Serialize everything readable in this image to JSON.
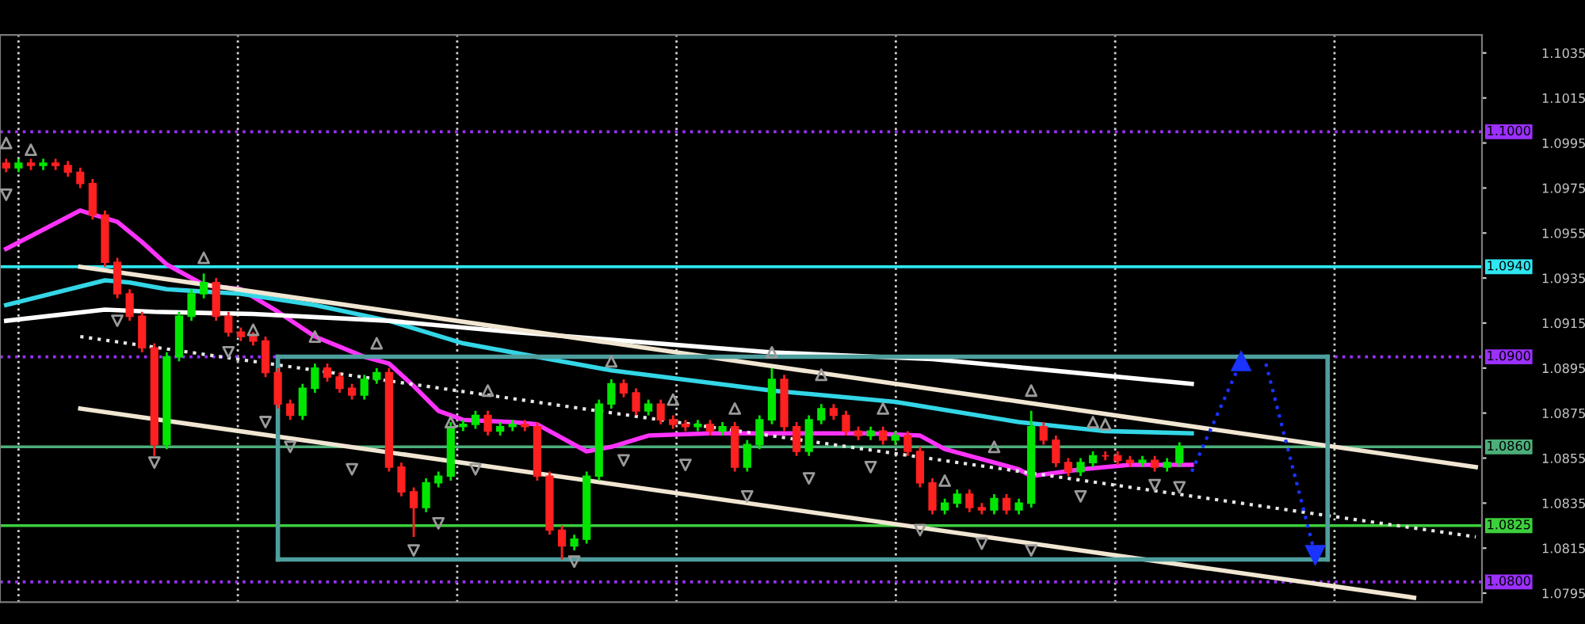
{
  "chart_data": {
    "type": "candlestick",
    "categories": [
      null,
      null,
      null,
      null,
      null,
      null,
      null,
      null,
      null,
      null,
      null,
      null,
      null,
      null,
      null,
      null,
      null,
      null,
      null,
      null,
      null,
      null,
      null,
      null,
      null,
      null,
      null,
      null,
      null,
      null,
      null,
      null,
      null,
      null,
      null,
      null,
      null,
      null,
      null,
      null,
      null,
      null,
      null,
      null,
      null,
      null,
      null,
      null,
      null,
      null,
      null,
      null,
      null,
      null,
      null,
      null,
      null,
      null,
      null,
      null,
      null,
      null,
      null,
      null,
      null,
      null,
      null,
      null,
      null,
      null,
      null,
      null,
      null,
      null,
      null,
      null,
      null,
      null,
      null,
      null,
      null,
      null,
      null,
      null,
      null,
      null,
      null,
      null,
      null,
      null,
      null,
      null,
      null,
      null,
      null,
      null,
      null,
      null,
      null,
      null,
      null,
      null,
      null,
      null,
      null,
      null,
      null,
      null,
      null,
      null,
      null,
      null,
      null,
      null,
      null,
      null,
      null,
      null,
      null,
      null
    ],
    "ohlc": [
      [
        1.0986,
        1.0988,
        1.0982,
        1.0984
      ],
      [
        1.0984,
        1.0988,
        1.0982,
        1.0986
      ],
      [
        1.0986,
        1.0988,
        1.0983,
        1.0985
      ],
      [
        1.0985,
        1.0988,
        1.0983,
        1.0986
      ],
      [
        1.0986,
        1.0988,
        1.0983,
        1.0985
      ],
      [
        1.0985,
        1.0987,
        1.098,
        1.0982
      ],
      [
        1.0982,
        1.0984,
        1.0975,
        1.0977
      ],
      [
        1.0977,
        1.0979,
        1.0961,
        1.0963
      ],
      [
        1.0963,
        1.0965,
        1.094,
        1.0942
      ],
      [
        1.0942,
        1.0944,
        1.0926,
        1.0928
      ],
      [
        1.0928,
        1.093,
        1.0916,
        1.0918
      ],
      [
        1.0918,
        1.092,
        1.0902,
        1.0904
      ],
      [
        1.0904,
        1.0906,
        1.0856,
        1.0861
      ],
      [
        1.0861,
        1.0902,
        1.0859,
        1.09
      ],
      [
        1.09,
        1.092,
        1.0898,
        1.0918
      ],
      [
        1.0918,
        1.093,
        1.0916,
        1.0928
      ],
      [
        1.0928,
        1.0937,
        1.0926,
        1.0933
      ],
      [
        1.0933,
        1.0935,
        1.0916,
        1.0918
      ],
      [
        1.0918,
        1.092,
        1.0909,
        1.0911
      ],
      [
        1.0911,
        1.0913,
        1.0907,
        1.0909
      ],
      [
        1.0909,
        1.0911,
        1.0905,
        1.0907
      ],
      [
        1.0907,
        1.0909,
        1.0891,
        1.0893
      ],
      [
        1.0893,
        1.0895,
        1.0877,
        1.0879
      ],
      [
        1.0879,
        1.0881,
        1.0872,
        1.0874
      ],
      [
        1.0874,
        1.0888,
        1.0872,
        1.0886
      ],
      [
        1.0886,
        1.0897,
        1.0884,
        1.0895
      ],
      [
        1.0895,
        1.0897,
        1.0889,
        1.0891
      ],
      [
        1.0891,
        1.0893,
        1.0884,
        1.0886
      ],
      [
        1.0886,
        1.0888,
        1.0881,
        1.0883
      ],
      [
        1.0883,
        1.0892,
        1.0881,
        1.089
      ],
      [
        1.089,
        1.0895,
        1.0888,
        1.0893
      ],
      [
        1.0893,
        1.0895,
        1.0849,
        1.0851
      ],
      [
        1.0851,
        1.0853,
        1.0838,
        1.084
      ],
      [
        1.084,
        1.0842,
        1.082,
        1.0833
      ],
      [
        1.0833,
        1.0846,
        1.0831,
        1.0844
      ],
      [
        1.0844,
        1.0849,
        1.0842,
        1.0847
      ],
      [
        1.0847,
        1.0871,
        1.0845,
        1.0869
      ],
      [
        1.0869,
        1.0872,
        1.0867,
        1.087
      ],
      [
        1.087,
        1.0876,
        1.0868,
        1.0874
      ],
      [
        1.0874,
        1.0876,
        1.0865,
        1.0867
      ],
      [
        1.0867,
        1.0871,
        1.0865,
        1.0869
      ],
      [
        1.0869,
        1.0872,
        1.0867,
        1.087
      ],
      [
        1.087,
        1.0872,
        1.0867,
        1.0869
      ],
      [
        1.0869,
        1.0871,
        1.0845,
        1.0847
      ],
      [
        1.0847,
        1.0849,
        1.0821,
        1.0823
      ],
      [
        1.0823,
        1.0825,
        1.081,
        1.0816
      ],
      [
        1.0816,
        1.0821,
        1.0814,
        1.0819
      ],
      [
        1.0819,
        1.0849,
        1.0817,
        1.0847
      ],
      [
        1.0847,
        1.0881,
        1.0845,
        1.0879
      ],
      [
        1.0879,
        1.089,
        1.0877,
        1.0888
      ],
      [
        1.0888,
        1.089,
        1.0882,
        1.0884
      ],
      [
        1.0884,
        1.0886,
        1.0874,
        1.0876
      ],
      [
        1.0876,
        1.0881,
        1.0874,
        1.0879
      ],
      [
        1.0879,
        1.0881,
        1.087,
        1.0872
      ],
      [
        1.0872,
        1.0874,
        1.0868,
        1.087
      ],
      [
        1.087,
        1.0872,
        1.0867,
        1.0869
      ],
      [
        1.0869,
        1.0872,
        1.0867,
        1.087
      ],
      [
        1.087,
        1.0872,
        1.0865,
        1.0867
      ],
      [
        1.0867,
        1.0871,
        1.0865,
        1.0869
      ],
      [
        1.0869,
        1.0871,
        1.0849,
        1.0851
      ],
      [
        1.0851,
        1.0863,
        1.0849,
        1.0861
      ],
      [
        1.0861,
        1.0874,
        1.0859,
        1.0872
      ],
      [
        1.0872,
        1.0895,
        1.087,
        1.089
      ],
      [
        1.089,
        1.0892,
        1.0867,
        1.0869
      ],
      [
        1.0869,
        1.0871,
        1.0856,
        1.0858
      ],
      [
        1.0858,
        1.0874,
        1.0856,
        1.0872
      ],
      [
        1.0872,
        1.0879,
        1.087,
        1.0877
      ],
      [
        1.0877,
        1.0879,
        1.0872,
        1.0874
      ],
      [
        1.0874,
        1.0876,
        1.0865,
        1.0867
      ],
      [
        1.0867,
        1.0869,
        1.0863,
        1.0865
      ],
      [
        1.0865,
        1.0869,
        1.0863,
        1.0867
      ],
      [
        1.0867,
        1.0869,
        1.0861,
        1.0863
      ],
      [
        1.0863,
        1.0867,
        1.0861,
        1.0865
      ],
      [
        1.0865,
        1.0867,
        1.0856,
        1.0858
      ],
      [
        1.0858,
        1.086,
        1.0842,
        1.0844
      ],
      [
        1.0844,
        1.0846,
        1.083,
        1.0832
      ],
      [
        1.0832,
        1.0837,
        1.083,
        1.0835
      ],
      [
        1.0835,
        1.0841,
        1.0833,
        1.0839
      ],
      [
        1.0839,
        1.0841,
        1.0831,
        1.0833
      ],
      [
        1.0833,
        1.0835,
        1.083,
        1.0832
      ],
      [
        1.0832,
        1.0839,
        1.083,
        1.0837
      ],
      [
        1.0837,
        1.0839,
        1.083,
        1.0832
      ],
      [
        1.0832,
        1.0837,
        1.083,
        1.0835
      ],
      [
        1.0835,
        1.0876,
        1.0833,
        1.0869
      ],
      [
        1.0869,
        1.0871,
        1.0861,
        1.0863
      ],
      [
        1.0863,
        1.0865,
        1.0851,
        1.0853
      ],
      [
        1.0853,
        1.0855,
        1.0847,
        1.0849
      ],
      [
        1.0849,
        1.0855,
        1.0847,
        1.0853
      ],
      [
        1.0853,
        1.0858,
        1.0851,
        1.0856
      ],
      [
        1.0856,
        1.0858,
        1.0854,
        1.0856
      ],
      [
        1.0856,
        1.0858,
        1.0852,
        1.0854
      ],
      [
        1.0854,
        1.0856,
        1.0851,
        1.0853
      ],
      [
        1.0853,
        1.0856,
        1.0851,
        1.0854
      ],
      [
        1.0854,
        1.0856,
        1.0849,
        1.0851
      ],
      [
        1.0851,
        1.0855,
        1.0849,
        1.0853
      ],
      [
        1.0853,
        1.0862,
        1.0851,
        1.086
      ],
      null,
      null,
      null,
      null,
      null,
      null,
      null,
      null,
      null,
      null,
      null,
      null,
      null,
      null,
      null,
      null,
      null,
      null,
      null,
      null,
      null,
      null,
      null,
      null
    ],
    "colors": [
      "#ff2020",
      "#00e600",
      "#ff2020",
      "#00e600",
      "#ff2020",
      "#ff2020",
      "#ff2020",
      "#ff2020",
      "#ff2020",
      "#ff2020",
      "#ff2020",
      "#ff2020",
      "#ff2020",
      "#00e600",
      "#00e600",
      "#00e600",
      "#00e600",
      "#ff2020",
      "#ff2020",
      "#ff2020",
      "#ff2020",
      "#ff2020",
      "#ff2020",
      "#ff2020",
      "#00e600",
      "#00e600",
      "#ff2020",
      "#ff2020",
      "#ff2020",
      "#00e600",
      "#00e600",
      "#ff2020",
      "#ff2020",
      "#ff2020",
      "#00e600",
      "#00e600",
      "#00e600",
      "#00e600",
      "#00e600",
      "#ff2020",
      "#00e600",
      "#00e600",
      "#ff2020",
      "#ff2020",
      "#ff2020",
      "#ff2020",
      "#00e600",
      "#00e600",
      "#00e600",
      "#00e600",
      "#ff2020",
      "#ff2020",
      "#00e600",
      "#ff2020",
      "#ff2020",
      "#ff2020",
      "#00e600",
      "#ff2020",
      "#00e600",
      "#ff2020",
      "#00e600",
      "#00e600",
      "#00e600",
      "#ff2020",
      "#ff2020",
      "#00e600",
      "#00e600",
      "#ff2020",
      "#ff2020",
      "#ff2020",
      "#00e600",
      "#ff2020",
      "#00e600",
      "#ff2020",
      "#ff2020",
      "#ff2020",
      "#00e600",
      "#00e600",
      "#ff2020",
      "#ff2020",
      "#00e600",
      "#ff2020",
      "#00e600",
      "#00e600",
      "#ff2020",
      "#ff2020",
      "#ff2020",
      "#00e600",
      "#00e600",
      "#ff2020",
      "#ff2020",
      "#ff2020",
      "#00e600",
      "#ff2020",
      "#00e600",
      "#00e600",
      null,
      null,
      null,
      null,
      null,
      null,
      null,
      null,
      null,
      null,
      null,
      null,
      null,
      null,
      null,
      null,
      null,
      null,
      null,
      null,
      null,
      null,
      null,
      null
    ],
    "series": [
      {
        "type": "line",
        "color": "#ff33ff",
        "line_style": "solid",
        "values": [
          1.0948,
          null,
          null,
          null,
          null,
          null,
          1.0965,
          null,
          null,
          1.096,
          null,
          1.0951,
          null,
          1.0941,
          null,
          null,
          1.0932,
          null,
          null,
          1.093,
          null,
          null,
          1.092,
          null,
          null,
          1.0909,
          null,
          null,
          null,
          1.09,
          null,
          1.0897,
          null,
          1.0887,
          null,
          1.0876,
          null,
          1.0872,
          null,
          null,
          null,
          1.0871,
          null,
          1.087,
          null,
          null,
          null,
          1.0858,
          null,
          1.086,
          null,
          null,
          1.0865,
          null,
          null,
          null,
          null,
          1.0866,
          null,
          null,
          null,
          null,
          1.0866,
          null,
          null,
          null,
          null,
          null,
          null,
          null,
          1.0866,
          null,
          null,
          null,
          1.0865,
          null,
          1.0859,
          null,
          null,
          null,
          null,
          null,
          1.085,
          1.0847,
          null,
          null,
          null,
          1.085,
          null,
          null,
          null,
          1.0852,
          null,
          null,
          null,
          null,
          1.0852,
          null,
          null,
          null,
          null,
          null,
          null,
          null,
          null,
          null,
          null,
          null,
          null,
          null,
          null,
          null,
          null,
          null,
          null,
          null,
          null,
          null,
          null,
          null
        ]
      },
      {
        "type": "line",
        "color": "#33d6e6",
        "line_style": "solid",
        "values": [
          1.0923,
          null,
          null,
          null,
          null,
          null,
          null,
          null,
          1.0934,
          null,
          1.0933,
          null,
          null,
          1.093,
          null,
          null,
          null,
          null,
          null,
          1.0928,
          null,
          null,
          null,
          null,
          null,
          1.0923,
          null,
          null,
          null,
          null,
          null,
          1.0916,
          null,
          null,
          null,
          null,
          null,
          1.0906,
          null,
          null,
          null,
          1.0902,
          null,
          null,
          null,
          null,
          null,
          null,
          null,
          1.0894,
          null,
          null,
          null,
          null,
          null,
          null,
          null,
          null,
          null,
          null,
          null,
          null,
          1.0885,
          null,
          null,
          null,
          null,
          null,
          null,
          null,
          null,
          null,
          1.088,
          null,
          null,
          null,
          null,
          null,
          null,
          null,
          null,
          null,
          1.0871,
          null,
          null,
          null,
          null,
          null,
          null,
          1.0867,
          null,
          null,
          null,
          null,
          null,
          null,
          1.0866,
          null,
          null,
          null,
          null,
          null,
          null,
          null,
          null,
          null,
          null,
          null,
          null,
          null,
          null,
          null,
          null,
          null,
          null,
          null,
          null,
          null,
          null,
          null
        ]
      },
      {
        "type": "line",
        "color": "#ffffff",
        "line_style": "solid",
        "values": [
          1.0916,
          null,
          null,
          null,
          null,
          null,
          null,
          null,
          1.0921,
          null,
          null,
          null,
          1.092,
          null,
          null,
          null,
          null,
          null,
          null,
          null,
          1.0919,
          null,
          null,
          null,
          null,
          null,
          null,
          null,
          null,
          null,
          null,
          1.0916,
          null,
          null,
          null,
          null,
          null,
          null,
          null,
          null,
          null,
          1.0911,
          null,
          null,
          null,
          null,
          null,
          null,
          null,
          null,
          null,
          null,
          null,
          null,
          null,
          null,
          null,
          null,
          null,
          null,
          null,
          null,
          1.0902,
          null,
          null,
          null,
          null,
          null,
          null,
          null,
          null,
          null,
          null,
          null,
          null,
          1.0899,
          null,
          null,
          null,
          null,
          null,
          null,
          null,
          null,
          null,
          null,
          null,
          null,
          null,
          null,
          null,
          null,
          null,
          null,
          null,
          null,
          1.0888,
          null,
          null,
          null,
          null,
          null,
          null,
          null,
          null,
          null,
          null,
          null,
          null,
          null,
          null,
          null,
          null,
          null,
          null,
          null,
          null,
          null,
          null,
          null
        ]
      },
      {
        "type": "line",
        "color": "#f0e6d2",
        "line_style": "solid",
        "values": [
          null,
          null,
          null,
          null,
          null,
          null,
          1.094,
          null,
          null,
          null,
          null,
          null,
          null,
          null,
          null,
          null,
          null,
          null,
          null,
          null,
          null,
          null,
          null,
          null,
          null,
          null,
          null,
          null,
          null,
          null,
          null,
          null,
          null,
          null,
          null,
          null,
          null,
          null,
          null,
          null,
          null,
          null,
          null,
          null,
          null,
          null,
          null,
          null,
          null,
          null,
          null,
          null,
          null,
          null,
          null,
          null,
          null,
          null,
          null,
          null,
          null,
          null,
          null,
          null,
          null,
          null,
          null,
          null,
          null,
          null,
          null,
          null,
          null,
          null,
          null,
          null,
          null,
          null,
          null,
          null,
          null,
          null,
          null,
          null,
          null,
          null,
          null,
          null,
          null,
          null,
          null,
          null,
          null,
          null,
          null,
          null,
          null,
          null,
          null,
          null,
          null,
          null,
          null,
          null,
          null,
          null,
          null,
          null,
          null,
          null,
          null,
          null,
          null,
          null,
          null,
          null,
          null,
          null,
          null,
          1.0851
        ]
      },
      {
        "type": "line",
        "color": "#f0e6d2",
        "line_style": "solid",
        "values": [
          null,
          null,
          null,
          null,
          null,
          null,
          1.0877,
          null,
          null,
          null,
          null,
          null,
          null,
          null,
          null,
          null,
          null,
          null,
          null,
          null,
          null,
          null,
          null,
          null,
          null,
          null,
          null,
          null,
          null,
          null,
          null,
          null,
          null,
          null,
          null,
          null,
          null,
          null,
          null,
          null,
          null,
          null,
          null,
          null,
          null,
          null,
          null,
          null,
          null,
          null,
          null,
          null,
          null,
          null,
          null,
          null,
          null,
          null,
          null,
          null,
          null,
          null,
          null,
          null,
          null,
          null,
          null,
          null,
          null,
          null,
          null,
          null,
          null,
          null,
          null,
          null,
          null,
          null,
          null,
          null,
          null,
          null,
          null,
          null,
          null,
          null,
          null,
          null,
          null,
          null,
          null,
          null,
          null,
          null,
          null,
          null,
          null,
          null,
          null,
          null,
          null,
          null,
          null,
          null,
          null,
          null,
          null,
          null,
          null,
          null,
          null,
          null,
          null,
          null,
          1.0793,
          null,
          null,
          null,
          null,
          null
        ]
      },
      {
        "type": "line",
        "color": "#e6e6e6",
        "line_style": "dotted",
        "values": [
          null,
          null,
          null,
          null,
          null,
          null,
          1.0909,
          null,
          null,
          null,
          null,
          null,
          null,
          null,
          null,
          null,
          null,
          null,
          null,
          null,
          null,
          null,
          null,
          null,
          null,
          null,
          null,
          null,
          null,
          null,
          null,
          null,
          null,
          null,
          null,
          null,
          null,
          null,
          null,
          null,
          null,
          null,
          null,
          null,
          null,
          null,
          null,
          null,
          null,
          null,
          null,
          null,
          null,
          null,
          null,
          null,
          null,
          null,
          null,
          null,
          null,
          null,
          null,
          null,
          null,
          null,
          null,
          null,
          null,
          null,
          null,
          null,
          null,
          null,
          null,
          null,
          null,
          null,
          null,
          null,
          null,
          null,
          null,
          null,
          null,
          null,
          null,
          null,
          null,
          null,
          null,
          null,
          null,
          null,
          null,
          null,
          null,
          null,
          null,
          null,
          null,
          null,
          null,
          null,
          null,
          null,
          null,
          null,
          null,
          null,
          null,
          null,
          null,
          null,
          null,
          null,
          null,
          null,
          null,
          1.082
        ]
      },
      {
        "type": "line",
        "color": "#4f9e9e",
        "line_style": "solid",
        "values": [
          null,
          null,
          null,
          null,
          null,
          null,
          null,
          null,
          null,
          null,
          null,
          null,
          null,
          null,
          null,
          null,
          null,
          null,
          null,
          null,
          null,
          null,
          1.09,
          null,
          null,
          null,
          null,
          null,
          null,
          null,
          null,
          null,
          null,
          null,
          null,
          null,
          null,
          null,
          null,
          null,
          null,
          null,
          null,
          null,
          null,
          null,
          null,
          null,
          null,
          null,
          null,
          null,
          null,
          null,
          null,
          null,
          null,
          null,
          null,
          null,
          null,
          null,
          null,
          null,
          null,
          null,
          null,
          null,
          null,
          null,
          null,
          null,
          null,
          null,
          null,
          null,
          null,
          null,
          null,
          null,
          null,
          null,
          null,
          null,
          null,
          null,
          null,
          null,
          null,
          null,
          null,
          null,
          null,
          null,
          null,
          null,
          null,
          null,
          null,
          null,
          null,
          null,
          null,
          null,
          null,
          null,
          null,
          1.09,
          null,
          null,
          null,
          null,
          null,
          null,
          null,
          null,
          null,
          null,
          null,
          null
        ]
      },
      {
        "type": "line",
        "color": "#4f9e9e",
        "line_style": "solid",
        "values": [
          null,
          null,
          null,
          null,
          null,
          null,
          null,
          null,
          null,
          null,
          null,
          null,
          null,
          null,
          null,
          null,
          null,
          null,
          null,
          null,
          null,
          null,
          1.081,
          null,
          null,
          null,
          null,
          null,
          null,
          null,
          null,
          null,
          null,
          null,
          null,
          null,
          null,
          null,
          null,
          null,
          null,
          null,
          null,
          null,
          null,
          null,
          null,
          null,
          null,
          null,
          null,
          null,
          null,
          null,
          null,
          null,
          null,
          null,
          null,
          null,
          null,
          null,
          null,
          null,
          null,
          null,
          null,
          null,
          null,
          null,
          null,
          null,
          null,
          null,
          null,
          null,
          null,
          null,
          null,
          null,
          null,
          null,
          null,
          null,
          null,
          null,
          null,
          null,
          null,
          null,
          null,
          null,
          null,
          null,
          null,
          null,
          null,
          null,
          null,
          null,
          null,
          null,
          null,
          null,
          null,
          null,
          null,
          1.081,
          null,
          null,
          null,
          null,
          null,
          null,
          null,
          null,
          null,
          null,
          null,
          null
        ]
      },
      {
        "type": "line",
        "color": "#1a33ff",
        "line_style": "dotted",
        "marker": "triangle",
        "values": [
          null,
          null,
          null,
          null,
          null,
          null,
          null,
          null,
          null,
          null,
          null,
          null,
          null,
          null,
          null,
          null,
          null,
          null,
          null,
          null,
          null,
          null,
          null,
          null,
          null,
          null,
          null,
          null,
          null,
          null,
          null,
          null,
          null,
          null,
          null,
          null,
          null,
          null,
          null,
          null,
          null,
          null,
          null,
          null,
          null,
          null,
          null,
          null,
          null,
          null,
          null,
          null,
          null,
          null,
          null,
          null,
          null,
          null,
          null,
          null,
          null,
          null,
          null,
          null,
          null,
          null,
          null,
          null,
          null,
          null,
          null,
          null,
          null,
          null,
          null,
          null,
          null,
          null,
          null,
          null,
          null,
          null,
          null,
          null,
          null,
          null,
          null,
          null,
          null,
          null,
          null,
          null,
          null,
          null,
          null,
          null,
          1.0849,
          null,
          null,
          null,
          1.0898,
          null,
          null,
          null,
          null,
          null,
          null,
          null,
          null,
          null,
          null,
          null,
          null,
          null,
          null,
          null,
          null,
          null,
          null,
          null
        ]
      },
      {
        "type": "line",
        "color": "#1a33ff",
        "line_style": "dotted",
        "marker": "triangle",
        "values": [
          null,
          null,
          null,
          null,
          null,
          null,
          null,
          null,
          null,
          null,
          null,
          null,
          null,
          null,
          null,
          null,
          null,
          null,
          null,
          null,
          null,
          null,
          null,
          null,
          null,
          null,
          null,
          null,
          null,
          null,
          null,
          null,
          null,
          null,
          null,
          null,
          null,
          null,
          null,
          null,
          null,
          null,
          null,
          null,
          null,
          null,
          null,
          null,
          null,
          null,
          null,
          null,
          null,
          null,
          null,
          null,
          null,
          null,
          null,
          null,
          null,
          null,
          null,
          null,
          null,
          null,
          null,
          null,
          null,
          null,
          null,
          null,
          null,
          null,
          null,
          null,
          null,
          null,
          null,
          null,
          null,
          null,
          null,
          null,
          null,
          null,
          null,
          null,
          null,
          null,
          null,
          null,
          null,
          null,
          null,
          null,
          null,
          null,
          null,
          null,
          null,
          null,
          1.0897,
          null,
          null,
          null,
          1.0812,
          null,
          null,
          null,
          null,
          null,
          null,
          null,
          null,
          null,
          null,
          null,
          null,
          null
        ]
      },
      {
        "type": "scatter",
        "color": "#9a9a9a",
        "marker": "triangle",
        "values": [
          1.0995,
          null,
          1.0992,
          null,
          null,
          null,
          null,
          null,
          null,
          null,
          null,
          null,
          null,
          null,
          null,
          null,
          1.0944,
          null,
          null,
          null,
          1.0912,
          null,
          null,
          null,
          null,
          1.0909,
          null,
          null,
          null,
          null,
          1.0906,
          null,
          null,
          null,
          null,
          null,
          1.0871,
          null,
          null,
          1.0885,
          null,
          null,
          null,
          null,
          null,
          null,
          null,
          null,
          null,
          1.0898,
          null,
          null,
          null,
          null,
          1.0881,
          null,
          null,
          null,
          null,
          1.0877,
          null,
          null,
          1.0902,
          null,
          null,
          null,
          1.0892,
          null,
          null,
          null,
          null,
          1.0877,
          null,
          null,
          null,
          null,
          1.0845,
          null,
          null,
          null,
          1.086,
          null,
          null,
          1.0885,
          null,
          null,
          null,
          null,
          1.0871,
          1.087,
          null,
          null,
          null,
          null,
          null,
          null,
          null,
          null,
          null,
          null,
          null,
          null,
          null,
          null,
          null,
          null,
          null,
          null,
          null,
          null,
          null,
          null,
          null,
          null,
          null,
          null,
          null,
          null,
          null,
          null
        ]
      },
      {
        "type": "scatter",
        "color": "#9a9a9a",
        "marker": "triangle-down",
        "values": [
          1.0972,
          null,
          null,
          null,
          null,
          null,
          null,
          null,
          null,
          1.0916,
          null,
          null,
          1.0853,
          null,
          null,
          null,
          null,
          null,
          1.0902,
          null,
          null,
          1.0871,
          null,
          1.086,
          null,
          null,
          null,
          null,
          1.085,
          null,
          null,
          null,
          null,
          1.0814,
          null,
          1.0826,
          null,
          null,
          1.085,
          null,
          null,
          null,
          null,
          null,
          null,
          null,
          1.0809,
          null,
          null,
          null,
          1.0854,
          null,
          null,
          null,
          null,
          1.0852,
          null,
          null,
          null,
          null,
          1.0838,
          null,
          null,
          null,
          null,
          1.0846,
          null,
          null,
          null,
          null,
          1.0851,
          null,
          null,
          null,
          1.0823,
          null,
          null,
          null,
          null,
          1.0817,
          null,
          null,
          null,
          1.0814,
          null,
          null,
          null,
          1.0838,
          null,
          null,
          null,
          null,
          null,
          1.0843,
          null,
          1.0842,
          null,
          null,
          null,
          null,
          null,
          null,
          null,
          null,
          null,
          null,
          null,
          null,
          null,
          null,
          null,
          null,
          null,
          null,
          null,
          null,
          null,
          null,
          null,
          null
        ]
      }
    ],
    "ref_lines": [
      {
        "axis": "y",
        "value": 1.1,
        "label": "1.1000",
        "color": "#9b30ff",
        "line_style": "dotted"
      },
      {
        "axis": "y",
        "value": 1.094,
        "label": "1.0940",
        "color": "#2ee6f0",
        "line_style": "solid"
      },
      {
        "axis": "y",
        "value": 1.09,
        "label": "1.0900",
        "color": "#9b30ff",
        "line_style": "dotted"
      },
      {
        "axis": "y",
        "value": 1.086,
        "label": "1.0860",
        "color": "#4caf7a",
        "line_style": "solid"
      },
      {
        "axis": "y",
        "value": 1.0825,
        "label": "1.0825",
        "color": "#3ccf3c",
        "line_style": "solid"
      },
      {
        "axis": "y",
        "value": 1.08,
        "label": "1.0800",
        "color": "#9b30ff",
        "line_style": "dotted"
      }
    ],
    "ylim": [
      1.0791,
      1.1043
    ],
    "yticks": [
      1.0795,
      1.0815,
      1.0835,
      1.0855,
      1.0875,
      1.0895,
      1.0915,
      1.0935,
      1.0955,
      1.0975,
      1.0995,
      1.1015,
      1.1035
    ],
    "tick_labels": "y",
    "legend": false
  }
}
